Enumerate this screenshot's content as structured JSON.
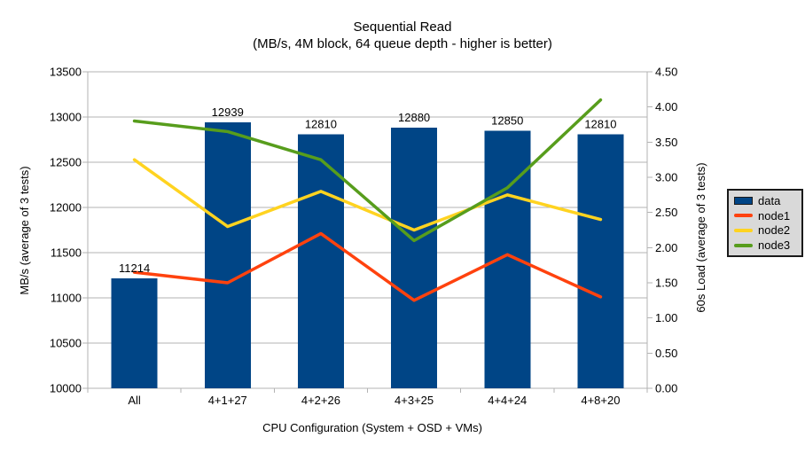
{
  "chart_data": {
    "type": "combo-bar-line",
    "title": "Sequential Read",
    "subtitle": "(MB/s, 4M block, 64 queue depth - higher is better)",
    "xlabel": "CPU Configuration (System + OSD + VMs)",
    "categories": [
      "All",
      "4+1+27",
      "4+2+26",
      "4+3+25",
      "4+4+24",
      "4+8+20"
    ],
    "left_axis": {
      "label": "MB/s (average of 3 tests)",
      "min": 10000,
      "max": 13500,
      "ticks": [
        10000,
        10500,
        11000,
        11500,
        12000,
        12500,
        13000,
        13500
      ],
      "tick_labels": [
        "10000",
        "10500",
        "11000",
        "11500",
        "12000",
        "12500",
        "13000",
        "13500"
      ]
    },
    "right_axis": {
      "label": "60s Load (average of 3 tests)",
      "min": 0,
      "max": 4.5,
      "ticks": [
        0,
        0.5,
        1.0,
        1.5,
        2.0,
        2.5,
        3.0,
        3.5,
        4.0,
        4.5
      ],
      "tick_labels": [
        "0.00",
        "0.50",
        "1.00",
        "1.50",
        "2.00",
        "2.50",
        "3.00",
        "3.50",
        "4.00",
        "4.50"
      ]
    },
    "series": [
      {
        "name": "data",
        "type": "bar",
        "axis": "left",
        "color": "#004586",
        "values": [
          11214,
          12939,
          12810,
          12880,
          12850,
          12810
        ],
        "value_labels": [
          "11214",
          "12939",
          "12810",
          "12880",
          "12850",
          "12810"
        ]
      },
      {
        "name": "node1",
        "type": "line",
        "axis": "right",
        "color": "#FF420E",
        "values": [
          1.65,
          1.5,
          2.2,
          1.25,
          1.9,
          1.3
        ]
      },
      {
        "name": "node2",
        "type": "line",
        "axis": "right",
        "color": "#FFD320",
        "values": [
          3.25,
          2.3,
          2.8,
          2.25,
          2.75,
          2.4
        ]
      },
      {
        "name": "node3",
        "type": "line",
        "axis": "right",
        "color": "#579D1C",
        "values": [
          3.8,
          3.65,
          3.25,
          2.1,
          2.85,
          4.1
        ]
      }
    ],
    "legend": {
      "position": "right",
      "entries": [
        "data",
        "node1",
        "node2",
        "node3"
      ]
    },
    "grid": true,
    "colors": {
      "grid": "#b3b3b3",
      "axis": "#b3b3b3",
      "legend_bg": "#d9d9d9",
      "legend_border": "#1a1a1a",
      "background": "#ffffff",
      "text": "#000000"
    }
  }
}
